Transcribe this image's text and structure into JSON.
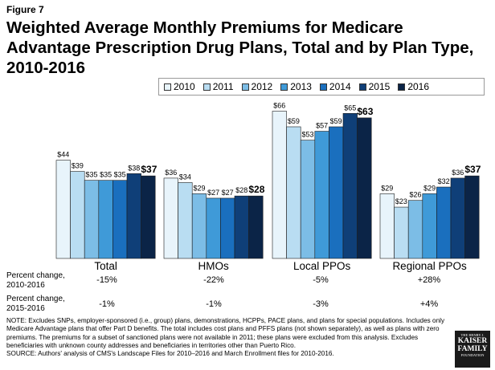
{
  "figure_label": "Figure 7",
  "title_line1": "Weighted Average Monthly Premiums for Medicare",
  "title_line2": "Advantage Prescription Drug Plans, Total and by Plan Type,",
  "title_line3": "2010-2016",
  "chart_data": {
    "type": "bar",
    "title": "Weighted Average Monthly Premiums for Medicare Advantage Prescription Drug Plans, Total and by Plan Type, 2010-2016",
    "categories": [
      "Total",
      "HMOs",
      "Local PPOs",
      "Regional PPOs"
    ],
    "ylim": [
      0,
      70
    ],
    "series": [
      {
        "name": "2010",
        "color": "#e8f4fb",
        "values": [
          44,
          36,
          66,
          29
        ],
        "labels": [
          "$44",
          "$36",
          "$66",
          "$29"
        ]
      },
      {
        "name": "2011",
        "color": "#b9ddf2",
        "values": [
          39,
          34,
          59,
          23
        ],
        "labels": [
          "$39",
          "$34",
          "$59",
          "$23"
        ]
      },
      {
        "name": "2012",
        "color": "#7cbde6",
        "values": [
          35,
          29,
          53,
          26
        ],
        "labels": [
          "$35",
          "$29",
          "$53",
          "$26"
        ]
      },
      {
        "name": "2013",
        "color": "#3f9ad8",
        "values": [
          35,
          27,
          57,
          29
        ],
        "labels": [
          "$35",
          "$27",
          "$57",
          "$29"
        ]
      },
      {
        "name": "2014",
        "color": "#1a6fbe",
        "values": [
          35,
          27,
          59,
          32
        ],
        "labels": [
          "$35",
          "$27",
          "$59",
          "$32"
        ]
      },
      {
        "name": "2015",
        "color": "#0f3f78",
        "values": [
          38,
          28,
          65,
          36
        ],
        "labels": [
          "$38",
          "$28",
          "$65",
          "$36"
        ]
      },
      {
        "name": "2016",
        "color": "#0b2447",
        "values": [
          37,
          28,
          63,
          37
        ],
        "labels": [
          "$37",
          "$28",
          "$63",
          "$37"
        ]
      }
    ]
  },
  "percent_change": {
    "row1_label_a": "Percent change,",
    "row1_label_b": "2010-2016",
    "row1_values": [
      "-15%",
      "-22%",
      "-5%",
      "+28%"
    ],
    "row2_label_a": "Percent change,",
    "row2_label_b": "2015-2016",
    "row2_values": [
      "-1%",
      "-1%",
      "-3%",
      "+4%"
    ]
  },
  "notes": {
    "note": "NOTE: Excludes SNPs, employer-sponsored (i.e., group) plans, demonstrations, HCPPs, PACE plans, and plans for special populations.  Includes only Medicare Advantage plans that offer Part D benefits. The total includes cost plans and PFFS plans (not shown separately), as well as plans with zero premiums. The premiums for a subset of sanctioned plans were not available in 2011; these plans were excluded from this analysis. Excludes beneficiaries with unknown county addresses and beneficiaries in territories other than Puerto Rico.",
    "source": "SOURCE:  Authors' analysis of CMS's Landscape Files for 2010–2016 and March Enrollment files for 2010-2016."
  },
  "logo": {
    "line1": "THE HENRY J.",
    "line2": "KAISER",
    "line3": "FAMILY",
    "line4": "FOUNDATION"
  }
}
